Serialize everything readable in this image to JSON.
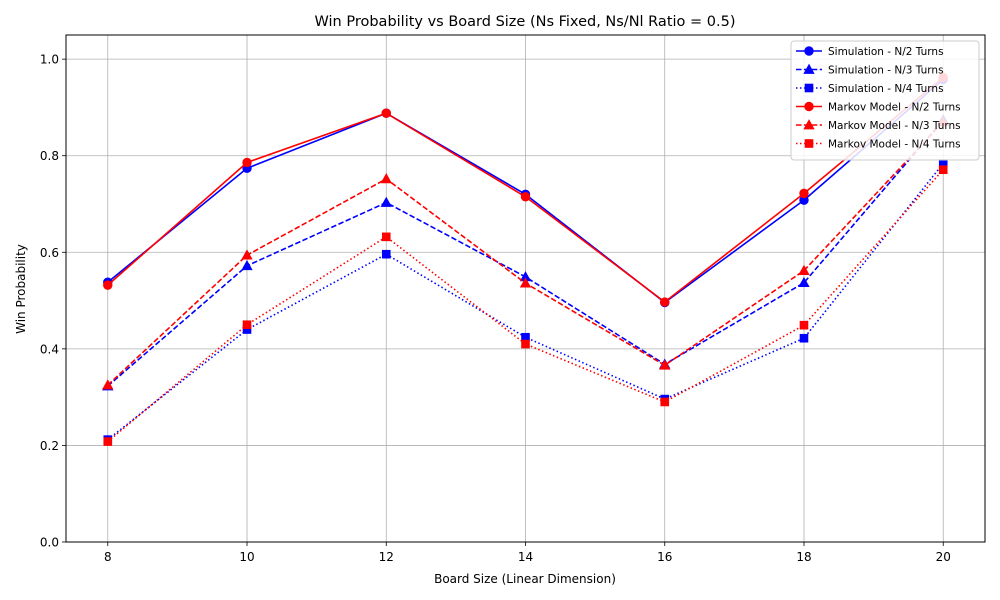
{
  "chart_data": {
    "type": "line",
    "title": "Win Probability vs Board Size (Ns Fixed, Ns/Nl Ratio = 0.5)",
    "xlabel": "Board Size (Linear Dimension)",
    "ylabel": "Win Probability",
    "x": [
      8,
      10,
      12,
      14,
      16,
      18,
      20
    ],
    "xlim": [
      7.4,
      20.6
    ],
    "ylim": [
      0.0,
      1.05
    ],
    "xticks": [
      "8",
      "10",
      "12",
      "14",
      "16",
      "18",
      "20"
    ],
    "yticks": [
      "0.0",
      "0.2",
      "0.4",
      "0.6",
      "0.8",
      "1.0"
    ],
    "grid": true,
    "legend_position": "top-right",
    "series": [
      {
        "name": "Simulation - N/2 Turns",
        "color": "#0000ff",
        "marker": "circle",
        "dash": "solid",
        "values": [
          0.538,
          0.774,
          0.888,
          0.72,
          0.496,
          0.708,
          0.958
        ]
      },
      {
        "name": "Simulation - N/3 Turns",
        "color": "#0000ff",
        "marker": "triangle",
        "dash": "dashed",
        "values": [
          0.323,
          0.572,
          0.703,
          0.549,
          0.368,
          0.537,
          0.874
        ]
      },
      {
        "name": "Simulation - N/4 Turns",
        "color": "#0000ff",
        "marker": "square",
        "dash": "dotted",
        "values": [
          0.212,
          0.44,
          0.596,
          0.424,
          0.296,
          0.422,
          0.784
        ]
      },
      {
        "name": "Markov Model - N/2 Turns",
        "color": "#ff0000",
        "marker": "circle",
        "dash": "solid",
        "values": [
          0.532,
          0.786,
          0.888,
          0.715,
          0.497,
          0.722,
          0.962
        ]
      },
      {
        "name": "Markov Model - N/3 Turns",
        "color": "#ff0000",
        "marker": "triangle",
        "dash": "dashed",
        "values": [
          0.325,
          0.594,
          0.752,
          0.536,
          0.366,
          0.562,
          0.87
        ]
      },
      {
        "name": "Markov Model - N/4 Turns",
        "color": "#ff0000",
        "marker": "square",
        "dash": "dotted",
        "values": [
          0.208,
          0.45,
          0.632,
          0.41,
          0.29,
          0.449,
          0.771
        ]
      }
    ]
  }
}
